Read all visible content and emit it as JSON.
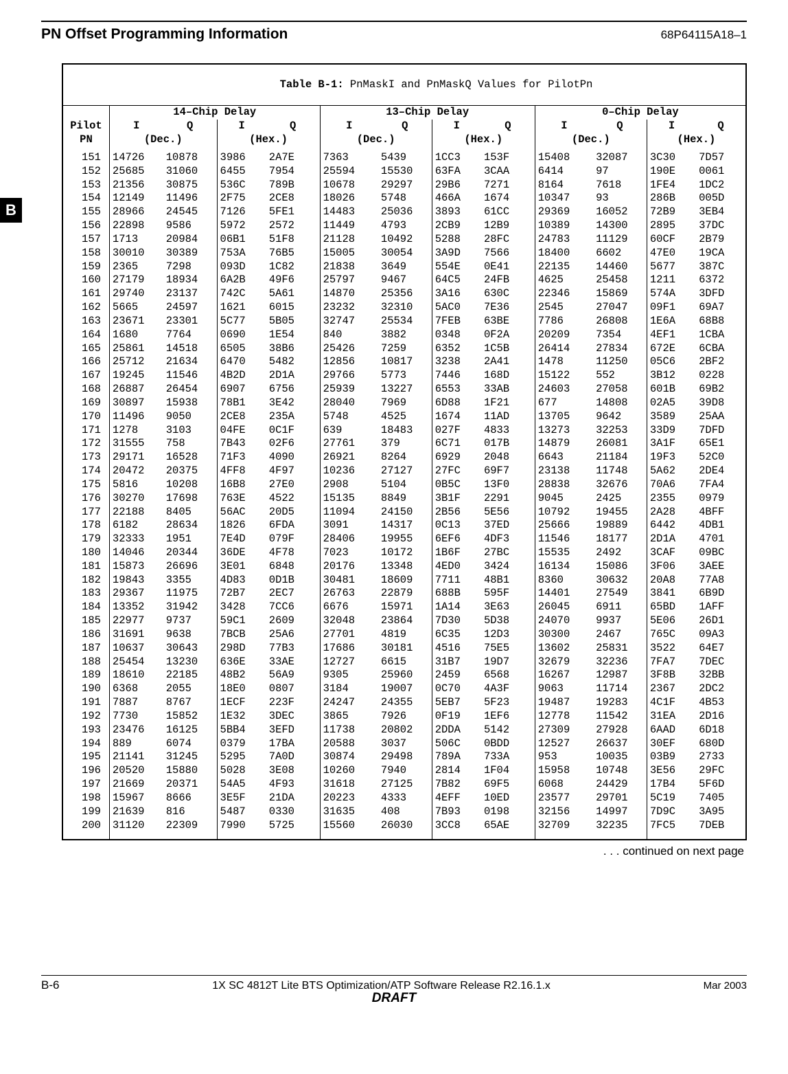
{
  "header": {
    "title": "PN Offset Programming Information",
    "docnum": "68P64115A18–1"
  },
  "side_tab": "B",
  "table": {
    "caption_bold": "Table B-1:",
    "caption_rest": " PnMaskI and PnMaskQ Values for PilotPn",
    "group_headers": [
      "14–Chip Delay",
      "13–Chip Delay",
      "0–Chip Delay"
    ],
    "col_iq": [
      "I",
      "Q"
    ],
    "col_units": [
      "(Dec.)",
      "(Hex.)"
    ],
    "pn_label": "Pilot",
    "pn_label2": "PN",
    "rows": [
      [
        151,
        "14726",
        "10878",
        "3986",
        "2A7E",
        "7363",
        "5439",
        "1CC3",
        "153F",
        "15408",
        "32087",
        "3C30",
        "7D57"
      ],
      [
        152,
        "25685",
        "31060",
        "6455",
        "7954",
        "25594",
        "15530",
        "63FA",
        "3CAA",
        "6414",
        "97",
        "190E",
        "0061"
      ],
      [
        153,
        "21356",
        "30875",
        "536C",
        "789B",
        "10678",
        "29297",
        "29B6",
        "7271",
        "8164",
        "7618",
        "1FE4",
        "1DC2"
      ],
      [
        154,
        "12149",
        "11496",
        "2F75",
        "2CE8",
        "18026",
        "5748",
        "466A",
        "1674",
        "10347",
        "93",
        "286B",
        "005D"
      ],
      [
        155,
        "28966",
        "24545",
        "7126",
        "5FE1",
        "14483",
        "25036",
        "3893",
        "61CC",
        "29369",
        "16052",
        "72B9",
        "3EB4"
      ],
      [
        156,
        "22898",
        "9586",
        "5972",
        "2572",
        "11449",
        "4793",
        "2CB9",
        "12B9",
        "10389",
        "14300",
        "2895",
        "37DC"
      ],
      [
        157,
        "1713",
        "20984",
        "06B1",
        "51F8",
        "21128",
        "10492",
        "5288",
        "28FC",
        "24783",
        "11129",
        "60CF",
        "2B79"
      ],
      [
        158,
        "30010",
        "30389",
        "753A",
        "76B5",
        "15005",
        "30054",
        "3A9D",
        "7566",
        "18400",
        "6602",
        "47E0",
        "19CA"
      ],
      [
        159,
        "2365",
        "7298",
        "093D",
        "1C82",
        "21838",
        "3649",
        "554E",
        "0E41",
        "22135",
        "14460",
        "5677",
        "387C"
      ],
      [
        160,
        "27179",
        "18934",
        "6A2B",
        "49F6",
        "25797",
        "9467",
        "64C5",
        "24FB",
        "4625",
        "25458",
        "1211",
        "6372"
      ],
      [
        161,
        "29740",
        "23137",
        "742C",
        "5A61",
        "14870",
        "25356",
        "3A16",
        "630C",
        "22346",
        "15869",
        "574A",
        "3DFD"
      ],
      [
        162,
        "5665",
        "24597",
        "1621",
        "6015",
        "23232",
        "32310",
        "5AC0",
        "7E36",
        "2545",
        "27047",
        "09F1",
        "69A7"
      ],
      [
        163,
        "23671",
        "23301",
        "5C77",
        "5B05",
        "32747",
        "25534",
        "7FEB",
        "63BE",
        "7786",
        "26808",
        "1E6A",
        "68B8"
      ],
      [
        164,
        "1680",
        "7764",
        "0690",
        "1E54",
        "840",
        "3882",
        "0348",
        "0F2A",
        "20209",
        "7354",
        "4EF1",
        "1CBA"
      ],
      [
        165,
        "25861",
        "14518",
        "6505",
        "38B6",
        "25426",
        "7259",
        "6352",
        "1C5B",
        "26414",
        "27834",
        "672E",
        "6CBA"
      ],
      [
        166,
        "25712",
        "21634",
        "6470",
        "5482",
        "12856",
        "10817",
        "3238",
        "2A41",
        "1478",
        "11250",
        "05C6",
        "2BF2"
      ],
      [
        167,
        "19245",
        "11546",
        "4B2D",
        "2D1A",
        "29766",
        "5773",
        "7446",
        "168D",
        "15122",
        "552",
        "3B12",
        "0228"
      ],
      [
        168,
        "26887",
        "26454",
        "6907",
        "6756",
        "25939",
        "13227",
        "6553",
        "33AB",
        "24603",
        "27058",
        "601B",
        "69B2"
      ],
      [
        169,
        "30897",
        "15938",
        "78B1",
        "3E42",
        "28040",
        "7969",
        "6D88",
        "1F21",
        "677",
        "14808",
        "02A5",
        "39D8"
      ],
      [
        170,
        "11496",
        "9050",
        "2CE8",
        "235A",
        "5748",
        "4525",
        "1674",
        "11AD",
        "13705",
        "9642",
        "3589",
        "25AA"
      ],
      [
        171,
        "1278",
        "3103",
        "04FE",
        "0C1F",
        "639",
        "18483",
        "027F",
        "4833",
        "13273",
        "32253",
        "33D9",
        "7DFD"
      ],
      [
        172,
        "31555",
        "758",
        "7B43",
        "02F6",
        "27761",
        "379",
        "6C71",
        "017B",
        "14879",
        "26081",
        "3A1F",
        "65E1"
      ],
      [
        173,
        "29171",
        "16528",
        "71F3",
        "4090",
        "26921",
        "8264",
        "6929",
        "2048",
        "6643",
        "21184",
        "19F3",
        "52C0"
      ],
      [
        174,
        "20472",
        "20375",
        "4FF8",
        "4F97",
        "10236",
        "27127",
        "27FC",
        "69F7",
        "23138",
        "11748",
        "5A62",
        "2DE4"
      ],
      [
        175,
        "5816",
        "10208",
        "16B8",
        "27E0",
        "2908",
        "5104",
        "0B5C",
        "13F0",
        "28838",
        "32676",
        "70A6",
        "7FA4"
      ],
      [
        176,
        "30270",
        "17698",
        "763E",
        "4522",
        "15135",
        "8849",
        "3B1F",
        "2291",
        "9045",
        "2425",
        "2355",
        "0979"
      ],
      [
        177,
        "22188",
        "8405",
        "56AC",
        "20D5",
        "11094",
        "24150",
        "2B56",
        "5E56",
        "10792",
        "19455",
        "2A28",
        "4BFF"
      ],
      [
        178,
        "6182",
        "28634",
        "1826",
        "6FDA",
        "3091",
        "14317",
        "0C13",
        "37ED",
        "25666",
        "19889",
        "6442",
        "4DB1"
      ],
      [
        179,
        "32333",
        "1951",
        "7E4D",
        "079F",
        "28406",
        "19955",
        "6EF6",
        "4DF3",
        "11546",
        "18177",
        "2D1A",
        "4701"
      ],
      [
        180,
        "14046",
        "20344",
        "36DE",
        "4F78",
        "7023",
        "10172",
        "1B6F",
        "27BC",
        "15535",
        "2492",
        "3CAF",
        "09BC"
      ],
      [
        181,
        "15873",
        "26696",
        "3E01",
        "6848",
        "20176",
        "13348",
        "4ED0",
        "3424",
        "16134",
        "15086",
        "3F06",
        "3AEE"
      ],
      [
        182,
        "19843",
        "3355",
        "4D83",
        "0D1B",
        "30481",
        "18609",
        "7711",
        "48B1",
        "8360",
        "30632",
        "20A8",
        "77A8"
      ],
      [
        183,
        "29367",
        "11975",
        "72B7",
        "2EC7",
        "26763",
        "22879",
        "688B",
        "595F",
        "14401",
        "27549",
        "3841",
        "6B9D"
      ],
      [
        184,
        "13352",
        "31942",
        "3428",
        "7CC6",
        "6676",
        "15971",
        "1A14",
        "3E63",
        "26045",
        "6911",
        "65BD",
        "1AFF"
      ],
      [
        185,
        "22977",
        "9737",
        "59C1",
        "2609",
        "32048",
        "23864",
        "7D30",
        "5D38",
        "24070",
        "9937",
        "5E06",
        "26D1"
      ],
      [
        186,
        "31691",
        "9638",
        "7BCB",
        "25A6",
        "27701",
        "4819",
        "6C35",
        "12D3",
        "30300",
        "2467",
        "765C",
        "09A3"
      ],
      [
        187,
        "10637",
        "30643",
        "298D",
        "77B3",
        "17686",
        "30181",
        "4516",
        "75E5",
        "13602",
        "25831",
        "3522",
        "64E7"
      ],
      [
        188,
        "25454",
        "13230",
        "636E",
        "33AE",
        "12727",
        "6615",
        "31B7",
        "19D7",
        "32679",
        "32236",
        "7FA7",
        "7DEC"
      ],
      [
        189,
        "18610",
        "22185",
        "48B2",
        "56A9",
        "9305",
        "25960",
        "2459",
        "6568",
        "16267",
        "12987",
        "3F8B",
        "32BB"
      ],
      [
        190,
        "6368",
        "2055",
        "18E0",
        "0807",
        "3184",
        "19007",
        "0C70",
        "4A3F",
        "9063",
        "11714",
        "2367",
        "2DC2"
      ],
      [
        191,
        "7887",
        "8767",
        "1ECF",
        "223F",
        "24247",
        "24355",
        "5EB7",
        "5F23",
        "19487",
        "19283",
        "4C1F",
        "4B53"
      ],
      [
        192,
        "7730",
        "15852",
        "1E32",
        "3DEC",
        "3865",
        "7926",
        "0F19",
        "1EF6",
        "12778",
        "11542",
        "31EA",
        "2D16"
      ],
      [
        193,
        "23476",
        "16125",
        "5BB4",
        "3EFD",
        "11738",
        "20802",
        "2DDA",
        "5142",
        "27309",
        "27928",
        "6AAD",
        "6D18"
      ],
      [
        194,
        "889",
        "6074",
        "0379",
        "17BA",
        "20588",
        "3037",
        "506C",
        "0BDD",
        "12527",
        "26637",
        "30EF",
        "680D"
      ],
      [
        195,
        "21141",
        "31245",
        "5295",
        "7A0D",
        "30874",
        "29498",
        "789A",
        "733A",
        "953",
        "10035",
        "03B9",
        "2733"
      ],
      [
        196,
        "20520",
        "15880",
        "5028",
        "3E08",
        "10260",
        "7940",
        "2814",
        "1F04",
        "15958",
        "10748",
        "3E56",
        "29FC"
      ],
      [
        197,
        "21669",
        "20371",
        "54A5",
        "4F93",
        "31618",
        "27125",
        "7B82",
        "69F5",
        "6068",
        "24429",
        "17B4",
        "5F6D"
      ],
      [
        198,
        "15967",
        "8666",
        "3E5F",
        "21DA",
        "20223",
        "4333",
        "4EFF",
        "10ED",
        "23577",
        "29701",
        "5C19",
        "7405"
      ],
      [
        199,
        "21639",
        "816",
        "5487",
        "0330",
        "31635",
        "408",
        "7B93",
        "0198",
        "32156",
        "14997",
        "7D9C",
        "3A95"
      ],
      [
        200,
        "31120",
        "22309",
        "7990",
        "5725",
        "15560",
        "26030",
        "3CC8",
        "65AE",
        "32709",
        "32235",
        "7FC5",
        "7DEB"
      ]
    ]
  },
  "continued": ". . . continued on next page",
  "footer": {
    "page": "B-6",
    "mid": "1X SC 4812T Lite BTS Optimization/ATP Software Release R2.16.1.x",
    "date": "Mar 2003",
    "draft": "DRAFT"
  }
}
